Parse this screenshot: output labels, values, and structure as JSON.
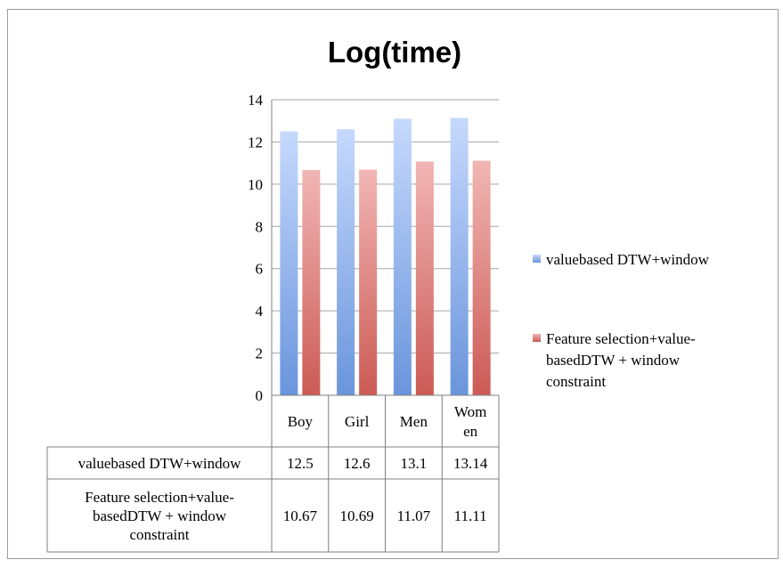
{
  "chart_data": {
    "type": "bar",
    "title": "Log(time)",
    "categories": [
      "Boy",
      "Girl",
      "Men",
      "Women"
    ],
    "category_display": [
      [
        "Boy"
      ],
      [
        "Girl"
      ],
      [
        "Men"
      ],
      [
        "Wom",
        "en"
      ]
    ],
    "series": [
      {
        "name": "valuebased DTW+window",
        "name_lines": [
          "valuebased DTW+window"
        ],
        "values": [
          12.5,
          12.6,
          13.1,
          13.14
        ],
        "value_labels": [
          "12.5",
          "12.6",
          "13.1",
          "13.14"
        ],
        "color_top": "#c6d9fd",
        "color_bottom": "#6a95dc"
      },
      {
        "name": "Feature selection+value-basedDTW + window constraint",
        "name_lines": [
          "Feature selection+value-",
          "basedDTW + window",
          "constraint"
        ],
        "values": [
          10.67,
          10.69,
          11.07,
          11.11
        ],
        "value_labels": [
          "10.67",
          "10.69",
          "11.07",
          "11.11"
        ],
        "color_top": "#f1b6b4",
        "color_bottom": "#cc5a55"
      }
    ],
    "ylim": [
      0,
      14
    ],
    "yticks": [
      0,
      2,
      4,
      6,
      8,
      10,
      12,
      14
    ],
    "grid": true,
    "legend": "right",
    "data_table": true
  }
}
